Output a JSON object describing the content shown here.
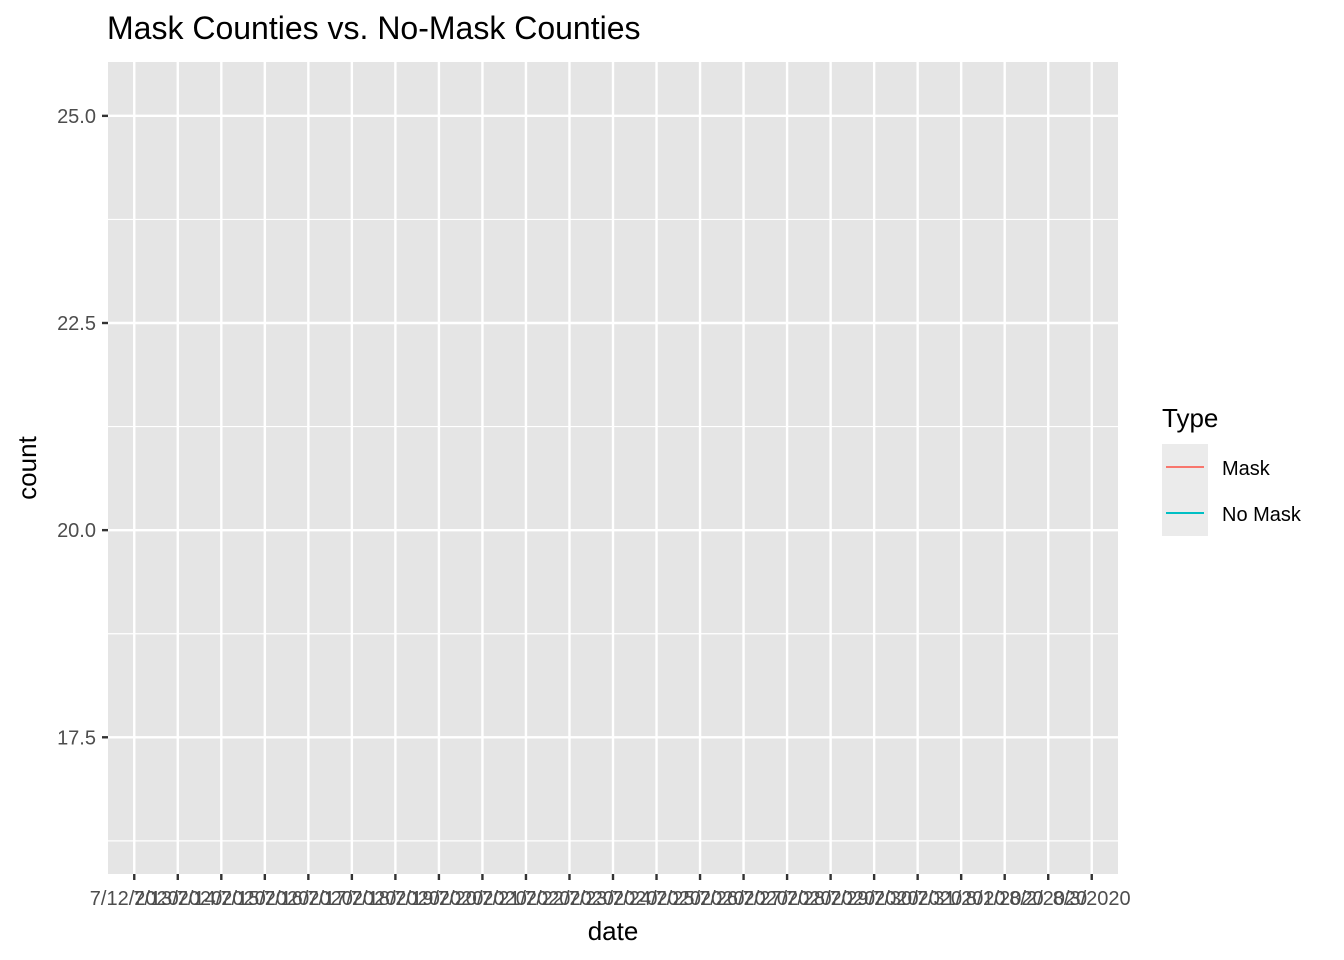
{
  "chart_data": {
    "type": "line",
    "title": "Mask Counties vs. No-Mask Counties",
    "xlabel": "date",
    "ylabel": "count",
    "x_categories": [
      "7/12/2020",
      "7/13/2020",
      "7/14/2020",
      "7/15/2020",
      "7/16/2020",
      "7/17/2020",
      "7/18/2020",
      "7/19/2020",
      "7/20/2020",
      "7/21/2020",
      "7/22/2020",
      "7/23/2020",
      "7/24/2020",
      "7/25/2020",
      "7/26/2020",
      "7/27/2020",
      "7/28/2020",
      "7/29/2020",
      "7/30/2020",
      "7/31/2020",
      "8/1/2020",
      "8/2/2020",
      "8/3/2020"
    ],
    "y_ticks": [
      17.5,
      20.0,
      22.5,
      25.0
    ],
    "y_tick_labels": [
      "17.5",
      "20.0",
      "22.5",
      "25.0"
    ],
    "ylim": [
      15.85,
      25.65
    ],
    "grid": true,
    "legend": {
      "title": "Type",
      "placement": "right",
      "entries": [
        {
          "label": "Mask",
          "color": "#F8766D"
        },
        {
          "label": "No Mask",
          "color": "#00BFC4"
        }
      ]
    },
    "series": [
      {
        "name": "Mask",
        "color": "#F8766D",
        "values": []
      },
      {
        "name": "No Mask",
        "color": "#00BFC4",
        "values": []
      }
    ],
    "colors": {
      "panel_background": "#E5E5E5",
      "grid": "#FFFFFF",
      "tick_label": "#4D4D4D",
      "tick_mark": "#333333"
    }
  }
}
